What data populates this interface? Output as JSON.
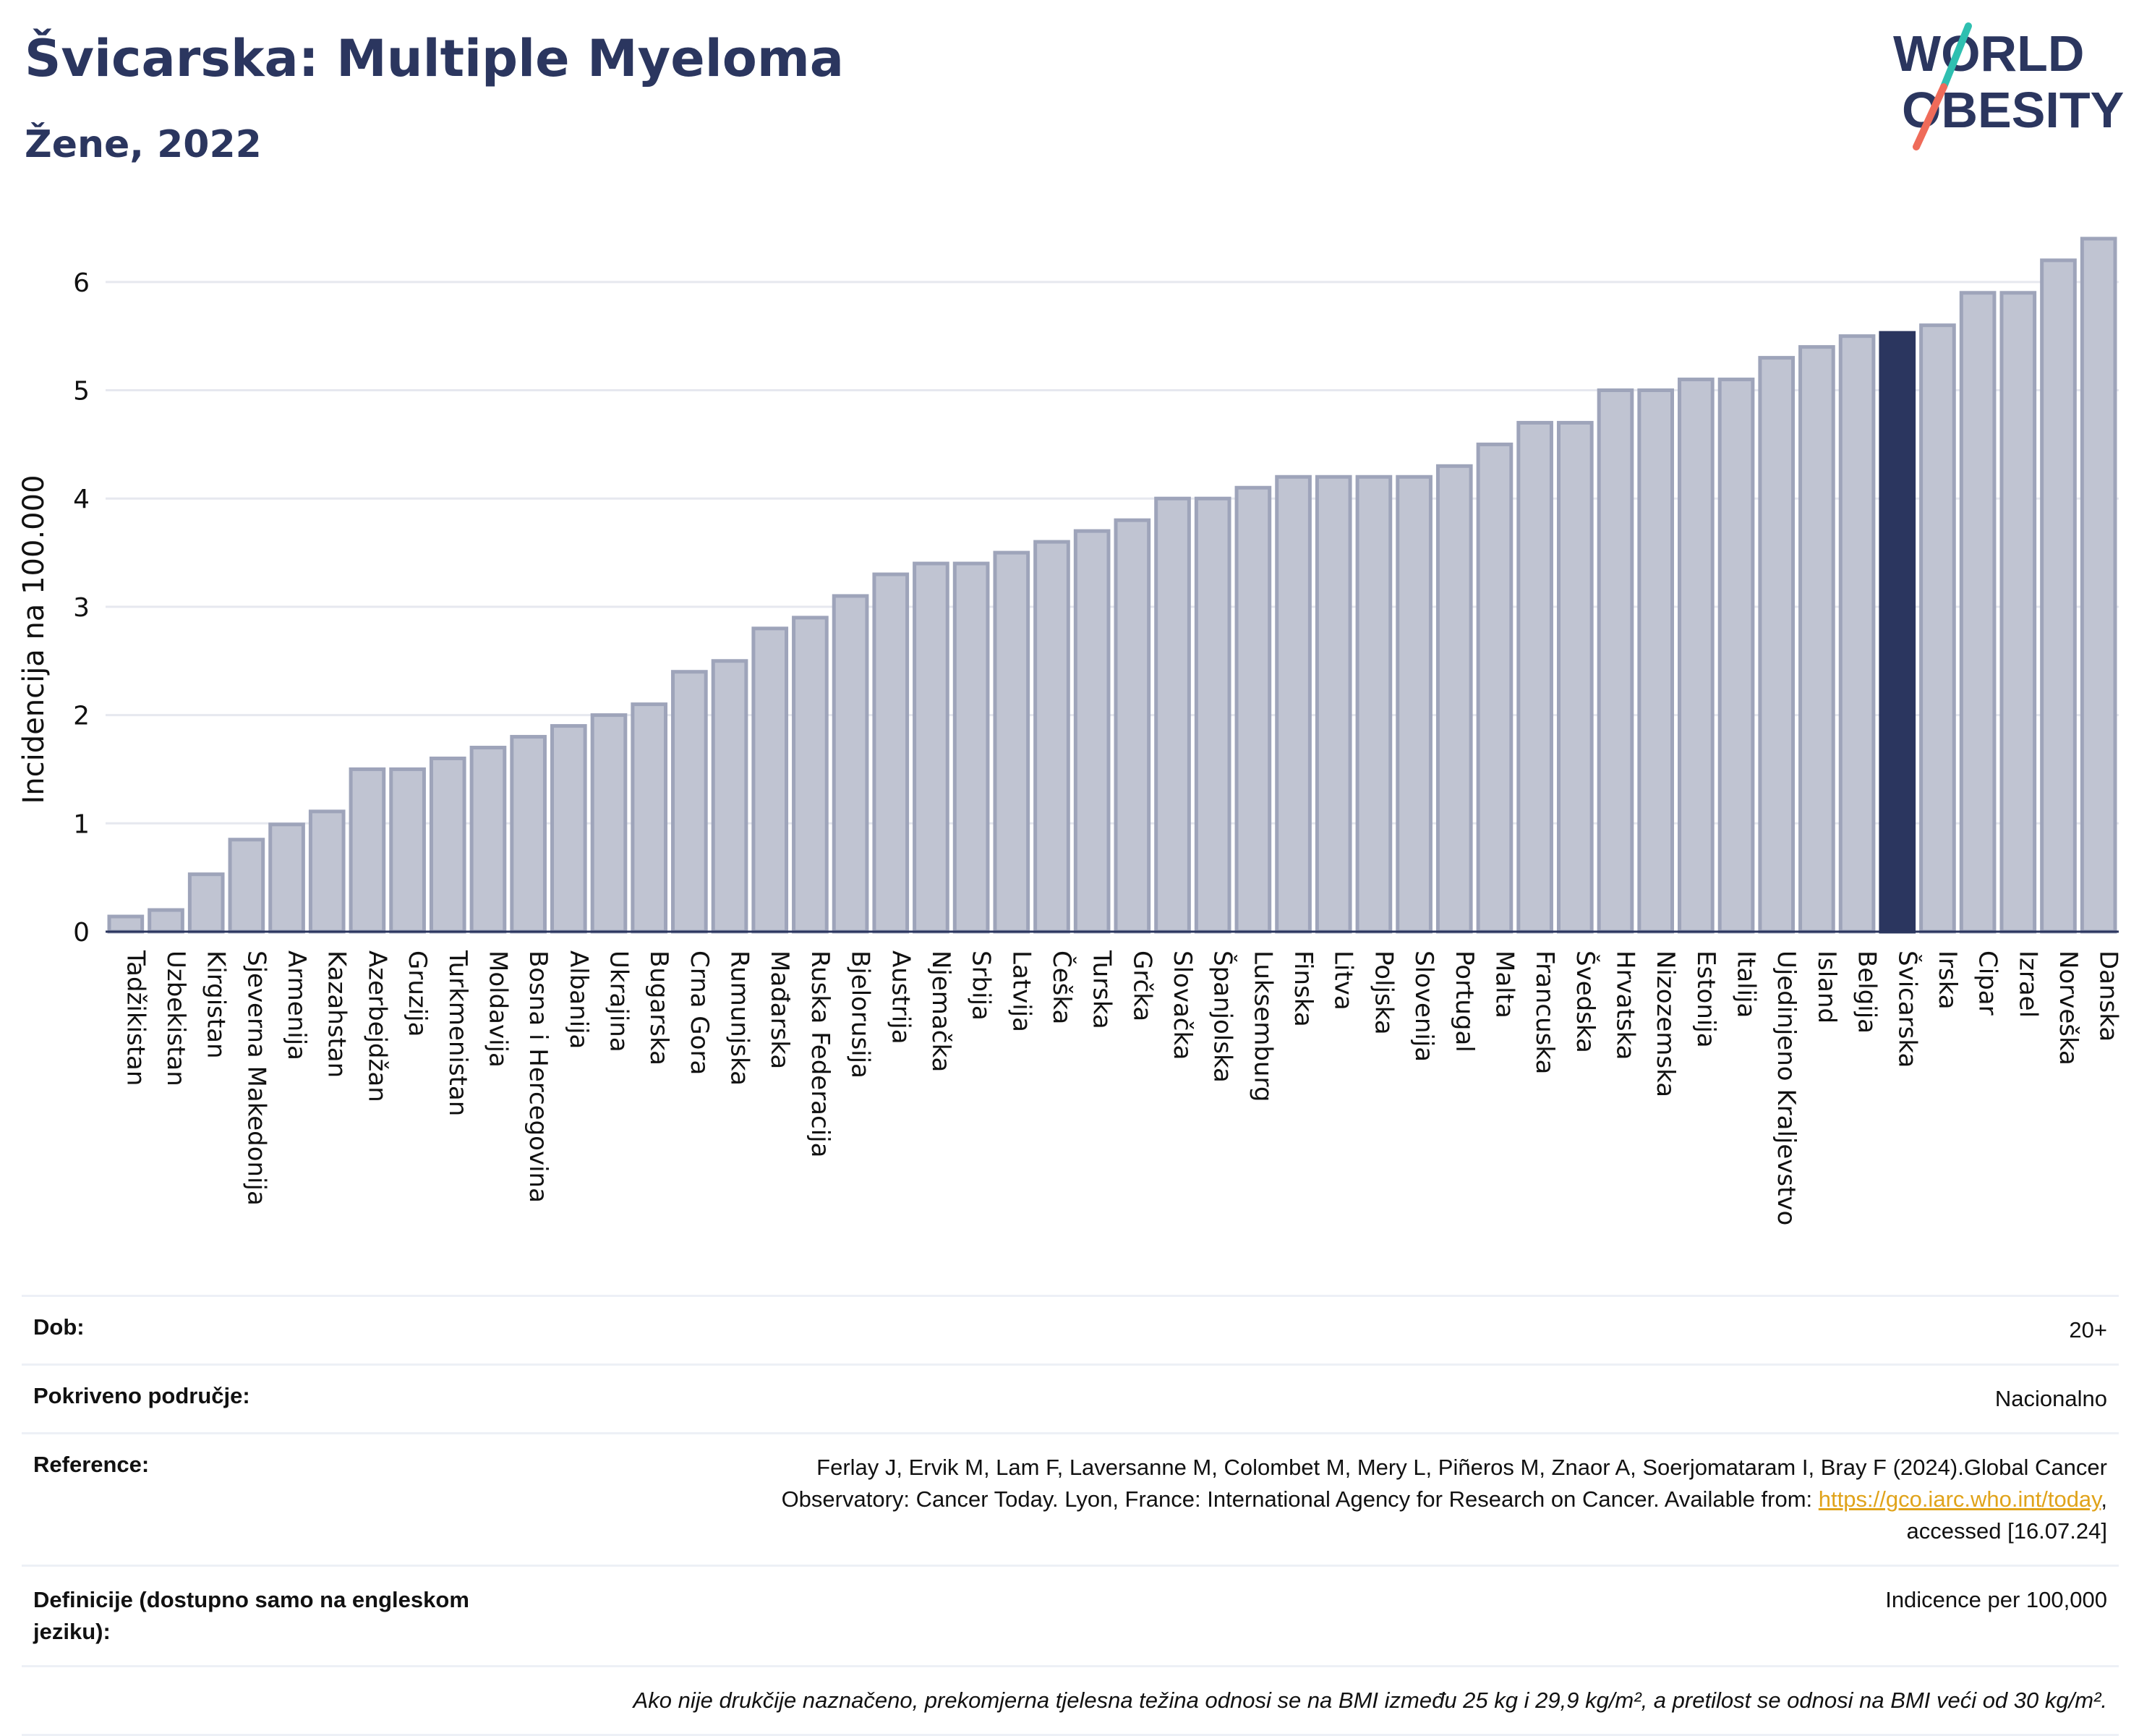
{
  "header": {
    "title": "Švicarska: Multiple Myeloma",
    "subtitle": "Žene, 2022",
    "logo_line1": "WORLD",
    "logo_line2": "OBESITY"
  },
  "colors": {
    "bar_default": "#c0c4d2",
    "bar_default_stroke": "#9ea4ba",
    "bar_highlight": "#2b365f",
    "grid": "#e6e8ef",
    "text": "#2b365f",
    "link": "#e0a31a"
  },
  "chart_data": {
    "type": "bar",
    "title": "Švicarska: Multiple Myeloma",
    "subtitle": "Žene, 2022",
    "ylabel": "Incidencija na 100.000",
    "xlabel": "",
    "ylim": [
      0,
      6.6
    ],
    "yticks": [
      0,
      1,
      2,
      3,
      4,
      5,
      6
    ],
    "grid": true,
    "highlight": "Švicarska",
    "categories": [
      "Tadžikistan",
      "Uzbekistan",
      "Kirgistan",
      "Sjeverna Makedonija",
      "Armenija",
      "Kazahstan",
      "Azerbejdžan",
      "Gruzija",
      "Turkmenistan",
      "Moldavija",
      "Bosna i Hercegovina",
      "Albanija",
      "Ukrajina",
      "Bugarska",
      "Crna Gora",
      "Rumunjska",
      "Mađarska",
      "Ruska Federacija",
      "Bjelorusija",
      "Austrija",
      "Njemačka",
      "Srbija",
      "Latvija",
      "Češka",
      "Turska",
      "Grčka",
      "Slovačka",
      "Španjolska",
      "Luksemburg",
      "Finska",
      "Litva",
      "Poljska",
      "Slovenija",
      "Portugal",
      "Malta",
      "Francuska",
      "Švedska",
      "Hrvatska",
      "Nizozemska",
      "Estonija",
      "Italija",
      "Ujedinjeno Kraljevstvo",
      "Island",
      "Belgija",
      "Švicarska",
      "Irska",
      "Cipar",
      "Izrael",
      "Norveška",
      "Danska"
    ],
    "values": [
      0.14,
      0.2,
      0.53,
      0.85,
      0.99,
      1.11,
      1.5,
      1.5,
      1.6,
      1.7,
      1.8,
      1.9,
      2.0,
      2.1,
      2.4,
      2.5,
      2.8,
      2.9,
      3.1,
      3.3,
      3.4,
      3.4,
      3.5,
      3.6,
      3.7,
      3.8,
      4.0,
      4.0,
      4.1,
      4.2,
      4.2,
      4.2,
      4.2,
      4.3,
      4.5,
      4.7,
      4.7,
      5.0,
      5.0,
      5.1,
      5.1,
      5.3,
      5.4,
      5.5,
      5.53,
      5.6,
      5.9,
      5.9,
      6.2,
      6.4
    ]
  },
  "info": {
    "age_label": "Dob:",
    "age_value": "20+",
    "coverage_label": "Pokriveno područje:",
    "coverage_value": "Nacionalno",
    "reference_label": "Reference:",
    "reference_line1": "Ferlay J, Ervik M, Lam F, Laversanne M, Colombet M, Mery L, Piñeros M, Znaor A, Soerjomataram I, Bray F (2024).Global Cancer",
    "reference_line2": "Observatory: Cancer Today. Lyon, France: International Agency for Research on Cancer. Available from: ",
    "reference_link": "https://gco.iarc.who.int/today",
    "reference_line2_end": ",",
    "reference_line3": "accessed [16.07.24]",
    "definitions_label": "Definicije (dostupno samo na engleskom jeziku):",
    "definitions_value": "Indicence per 100,000",
    "note": "Ako nije drukčije naznačeno, prekomjerna tjelesna težina odnosi se na BMI između 25 kg i 29,9 kg/m², a pretilost se odnosi na BMI veći od 30 kg/m²."
  }
}
